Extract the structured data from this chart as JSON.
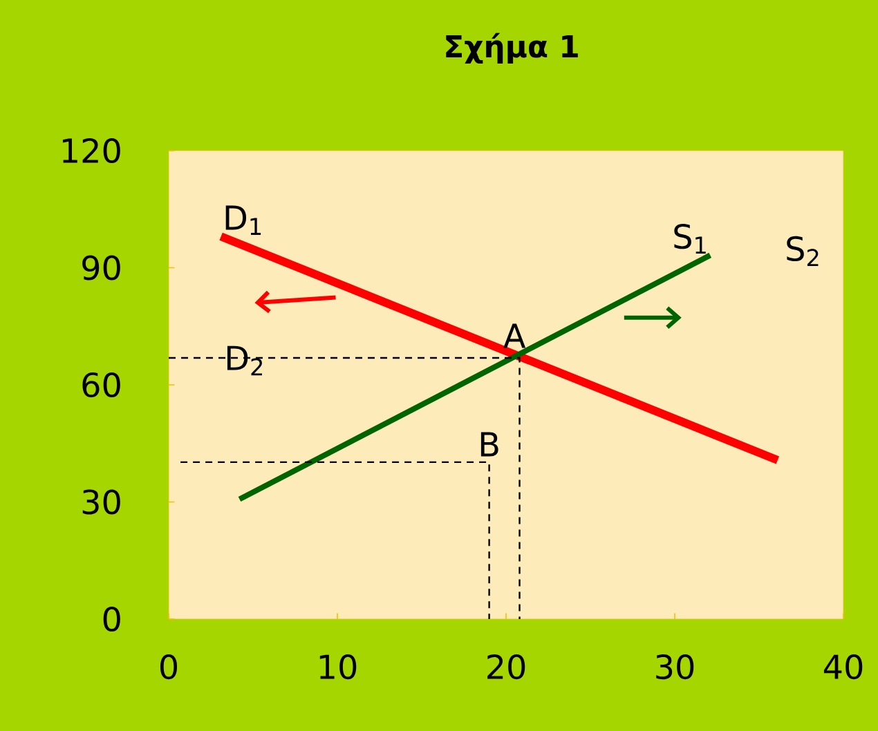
{
  "chart_data": {
    "type": "line",
    "title": "**Σχήμα 1**",
    "xlim": [
      0,
      40
    ],
    "xticks": [
      0,
      10,
      20,
      30,
      40
    ],
    "ylim": [
      0,
      120
    ],
    "yticks": [
      0,
      30,
      60,
      90,
      120
    ],
    "grid": false,
    "marker": "none",
    "series": [
      {
        "name": "D$_{1}$",
        "color": "#ff0000",
        "x": [
          3.1,
          36.1
        ],
        "values": [
          98,
          40.7
        ],
        "line_style": "solid"
      },
      {
        "name": "S$_{1}$",
        "color": "#006400",
        "x": [
          4.2,
          32.1
        ],
        "values": [
          30.7,
          93.2
        ],
        "line_style": "solid"
      },
      {
        "color": "#000000",
        "x": [
          0,
          20.8,
          20.8
        ],
        "values": [
          66.9,
          66.9,
          0
        ],
        "line_style": "dashed"
      },
      {
        "color": "#000000",
        "x": [
          0.7,
          19,
          19
        ],
        "values": [
          40.2,
          40.2,
          0
        ],
        "line_style": "dashed"
      }
    ],
    "annotations": [
      {
        "text": "A",
        "x": 20.5,
        "y": 68
      },
      {
        "text": "B",
        "x": 19,
        "y": 40.2
      },
      "D$_{2}$",
      "S$_{2}$"
    ]
  }
}
